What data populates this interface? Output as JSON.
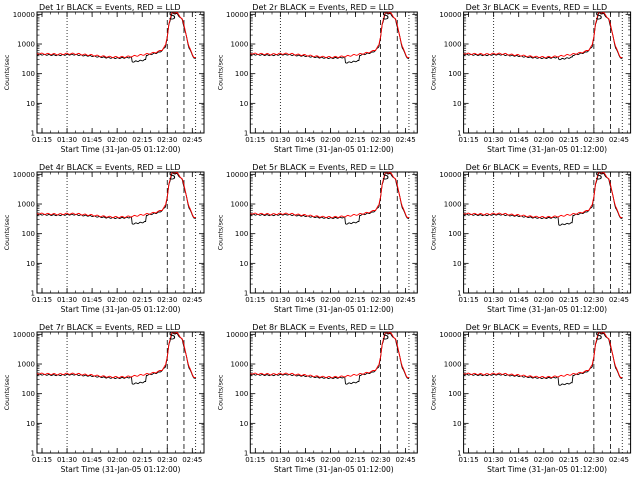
{
  "page": {
    "background": "#ffffff"
  },
  "chart_data": [
    {
      "type": "line",
      "title": "Det 1r BLACK = Events, RED = LLD",
      "xlabel": "Start Time (31-Jan-05 01:12:00)",
      "ylabel": "Counts/sec",
      "xlim": [
        "01:12",
        "02:52"
      ],
      "ylim": [
        1,
        12000
      ],
      "yscale": "log",
      "x_ticks": [
        "01:15",
        "01:30",
        "01:45",
        "02:00",
        "02:15",
        "02:30",
        "02:45"
      ],
      "y_ticks": [
        "1",
        "10",
        "100",
        "1000",
        "10000"
      ],
      "events_dip_offset": 0.7,
      "vlines": [
        {
          "time": "01:30",
          "style": "dotted"
        },
        {
          "time": "02:30",
          "style": "dashed"
        },
        {
          "time": "02:40",
          "style": "dashed"
        },
        {
          "time": "02:47",
          "style": "dotted"
        }
      ],
      "annotation": {
        "text": "S",
        "time": "02:33",
        "value": 9000
      },
      "series": [
        {
          "name": "BLACK",
          "color": "#000000"
        },
        {
          "name": "RED",
          "color": "#ff0000"
        }
      ]
    },
    {
      "type": "line",
      "title": "Det 2r BLACK = Events, RED = LLD",
      "xlabel": "Start Time (31-Jan-05 01:12:00)",
      "ylabel": "Counts/sec",
      "xlim": [
        "01:12",
        "02:52"
      ],
      "ylim": [
        1,
        12000
      ],
      "yscale": "log",
      "x_ticks": [
        "01:15",
        "01:30",
        "01:45",
        "02:00",
        "02:15",
        "02:30",
        "02:45"
      ],
      "y_ticks": [
        "1",
        "10",
        "100",
        "1000",
        "10000"
      ],
      "events_dip_offset": 0.65,
      "vlines": [
        {
          "time": "01:30",
          "style": "dotted"
        },
        {
          "time": "02:30",
          "style": "dashed"
        },
        {
          "time": "02:40",
          "style": "dashed"
        },
        {
          "time": "02:47",
          "style": "dotted"
        }
      ],
      "annotation": {
        "text": "S",
        "time": "02:33",
        "value": 9000
      },
      "series": [
        {
          "name": "BLACK",
          "color": "#000000"
        },
        {
          "name": "RED",
          "color": "#ff0000"
        }
      ]
    },
    {
      "type": "line",
      "title": "Det 3r BLACK = Events, RED = LLD",
      "xlabel": "Start Time (31-Jan-05 01:12:00)",
      "ylabel": "Counts/sec",
      "xlim": [
        "01:12",
        "02:52"
      ],
      "ylim": [
        1,
        12000
      ],
      "yscale": "log",
      "x_ticks": [
        "01:15",
        "01:30",
        "01:45",
        "02:00",
        "02:15",
        "02:30",
        "02:45"
      ],
      "y_ticks": [
        "1",
        "10",
        "100",
        "1000",
        "10000"
      ],
      "events_dip_offset": 0.85,
      "vlines": [
        {
          "time": "01:30",
          "style": "dotted"
        },
        {
          "time": "02:30",
          "style": "dashed"
        },
        {
          "time": "02:40",
          "style": "dashed"
        },
        {
          "time": "02:47",
          "style": "dotted"
        }
      ],
      "annotation": {
        "text": "S",
        "time": "02:33",
        "value": 9000
      },
      "series": [
        {
          "name": "BLACK",
          "color": "#000000"
        },
        {
          "name": "RED",
          "color": "#ff0000"
        }
      ]
    },
    {
      "type": "line",
      "title": "Det 4r BLACK = Events, RED = LLD",
      "xlabel": "Start Time (31-Jan-05 01:12:00)",
      "ylabel": "Counts/sec",
      "xlim": [
        "01:12",
        "02:52"
      ],
      "ylim": [
        1,
        12000
      ],
      "yscale": "log",
      "x_ticks": [
        "01:15",
        "01:30",
        "01:45",
        "02:00",
        "02:15",
        "02:30",
        "02:45"
      ],
      "y_ticks": [
        "1",
        "10",
        "100",
        "1000",
        "10000"
      ],
      "events_dip_offset": 0.6,
      "vlines": [
        {
          "time": "01:30",
          "style": "dotted"
        },
        {
          "time": "02:30",
          "style": "dashed"
        },
        {
          "time": "02:40",
          "style": "dashed"
        },
        {
          "time": "02:47",
          "style": "dotted"
        }
      ],
      "annotation": {
        "text": "S",
        "time": "02:33",
        "value": 9000
      },
      "series": [
        {
          "name": "BLACK",
          "color": "#000000"
        },
        {
          "name": "RED",
          "color": "#ff0000"
        }
      ]
    },
    {
      "type": "line",
      "title": "Det 5r BLACK = Events, RED = LLD",
      "xlabel": "Start Time (31-Jan-05 01:12:00)",
      "ylabel": "Counts/sec",
      "xlim": [
        "01:12",
        "02:52"
      ],
      "ylim": [
        1,
        12000
      ],
      "yscale": "log",
      "x_ticks": [
        "01:15",
        "01:30",
        "01:45",
        "02:00",
        "02:15",
        "02:30",
        "02:45"
      ],
      "y_ticks": [
        "1",
        "10",
        "100",
        "1000",
        "10000"
      ],
      "events_dip_offset": 0.6,
      "vlines": [
        {
          "time": "01:30",
          "style": "dotted"
        },
        {
          "time": "02:30",
          "style": "dashed"
        },
        {
          "time": "02:40",
          "style": "dashed"
        },
        {
          "time": "02:47",
          "style": "dotted"
        }
      ],
      "annotation": {
        "text": "S",
        "time": "02:33",
        "value": 9000
      },
      "series": [
        {
          "name": "BLACK",
          "color": "#000000"
        },
        {
          "name": "RED",
          "color": "#ff0000"
        }
      ]
    },
    {
      "type": "line",
      "title": "Det 6r BLACK = Events, RED = LLD",
      "xlabel": "Start Time (31-Jan-05 01:12:00)",
      "ylabel": "Counts/sec",
      "xlim": [
        "01:12",
        "02:52"
      ],
      "ylim": [
        1,
        12000
      ],
      "yscale": "log",
      "x_ticks": [
        "01:15",
        "01:30",
        "01:45",
        "02:00",
        "02:15",
        "02:30",
        "02:45"
      ],
      "y_ticks": [
        "1",
        "10",
        "100",
        "1000",
        "10000"
      ],
      "events_dip_offset": 0.55,
      "vlines": [
        {
          "time": "01:30",
          "style": "dotted"
        },
        {
          "time": "02:30",
          "style": "dashed"
        },
        {
          "time": "02:40",
          "style": "dashed"
        },
        {
          "time": "02:47",
          "style": "dotted"
        }
      ],
      "annotation": {
        "text": "S",
        "time": "02:33",
        "value": 9000
      },
      "series": [
        {
          "name": "BLACK",
          "color": "#000000"
        },
        {
          "name": "RED",
          "color": "#ff0000"
        }
      ]
    },
    {
      "type": "line",
      "title": "Det 7r BLACK = Events, RED = LLD",
      "xlabel": "Start Time (31-Jan-05 01:12:00)",
      "ylabel": "Counts/sec",
      "xlim": [
        "01:12",
        "02:52"
      ],
      "ylim": [
        1,
        12000
      ],
      "yscale": "log",
      "x_ticks": [
        "01:15",
        "01:30",
        "01:45",
        "02:00",
        "02:15",
        "02:30",
        "02:45"
      ],
      "y_ticks": [
        "1",
        "10",
        "100",
        "1000",
        "10000"
      ],
      "events_dip_offset": 0.6,
      "vlines": [
        {
          "time": "01:30",
          "style": "dotted"
        },
        {
          "time": "02:30",
          "style": "dashed"
        },
        {
          "time": "02:40",
          "style": "dashed"
        },
        {
          "time": "02:47",
          "style": "dotted"
        }
      ],
      "annotation": {
        "text": "S",
        "time": "02:33",
        "value": 9000
      },
      "series": [
        {
          "name": "BLACK",
          "color": "#000000"
        },
        {
          "name": "RED",
          "color": "#ff0000"
        }
      ]
    },
    {
      "type": "line",
      "title": "Det 8r BLACK = Events, RED = LLD",
      "xlabel": "Start Time (31-Jan-05 01:12:00)",
      "ylabel": "Counts/sec",
      "xlim": [
        "01:12",
        "02:52"
      ],
      "ylim": [
        1,
        12000
      ],
      "yscale": "log",
      "x_ticks": [
        "01:15",
        "01:30",
        "01:45",
        "02:00",
        "02:15",
        "02:30",
        "02:45"
      ],
      "y_ticks": [
        "1",
        "10",
        "100",
        "1000",
        "10000"
      ],
      "events_dip_offset": 0.6,
      "vlines": [
        {
          "time": "01:30",
          "style": "dotted"
        },
        {
          "time": "02:30",
          "style": "dashed"
        },
        {
          "time": "02:40",
          "style": "dashed"
        },
        {
          "time": "02:47",
          "style": "dotted"
        }
      ],
      "annotation": {
        "text": "S",
        "time": "02:33",
        "value": 9000
      },
      "series": [
        {
          "name": "BLACK",
          "color": "#000000"
        },
        {
          "name": "RED",
          "color": "#ff0000"
        }
      ]
    },
    {
      "type": "line",
      "title": "Det 9r BLACK = Events, RED = LLD",
      "xlabel": "Start Time (31-Jan-05 01:12:00)",
      "ylabel": "Counts/sec",
      "xlim": [
        "01:12",
        "02:52"
      ],
      "ylim": [
        1,
        12000
      ],
      "yscale": "log",
      "x_ticks": [
        "01:15",
        "01:30",
        "01:45",
        "02:00",
        "02:15",
        "02:30",
        "02:45"
      ],
      "y_ticks": [
        "1",
        "10",
        "100",
        "1000",
        "10000"
      ],
      "events_dip_offset": 0.55,
      "vlines": [
        {
          "time": "01:30",
          "style": "dotted"
        },
        {
          "time": "02:30",
          "style": "dashed"
        },
        {
          "time": "02:40",
          "style": "dashed"
        },
        {
          "time": "02:47",
          "style": "dotted"
        }
      ],
      "annotation": {
        "text": "S",
        "time": "02:33",
        "value": 9000
      },
      "series": [
        {
          "name": "BLACK",
          "color": "#000000"
        },
        {
          "name": "RED",
          "color": "#ff0000"
        }
      ]
    }
  ],
  "base_curve": {
    "times": [
      "01:12",
      "01:15",
      "01:20",
      "01:25",
      "01:30",
      "01:35",
      "01:40",
      "01:45",
      "01:50",
      "01:55",
      "02:00",
      "02:05",
      "02:10",
      "02:15",
      "02:20",
      "02:25",
      "02:27",
      "02:29",
      "02:30",
      "02:31",
      "02:33",
      "02:36",
      "02:39",
      "02:41",
      "02:43",
      "02:46",
      "02:47"
    ],
    "values": [
      480,
      470,
      460,
      450,
      470,
      470,
      440,
      420,
      390,
      370,
      360,
      370,
      390,
      430,
      480,
      560,
      650,
      900,
      1800,
      5000,
      12000,
      11000,
      7000,
      2500,
      800,
      360,
      330
    ]
  },
  "events_dip": {
    "start": "02:09",
    "end": "02:17"
  }
}
